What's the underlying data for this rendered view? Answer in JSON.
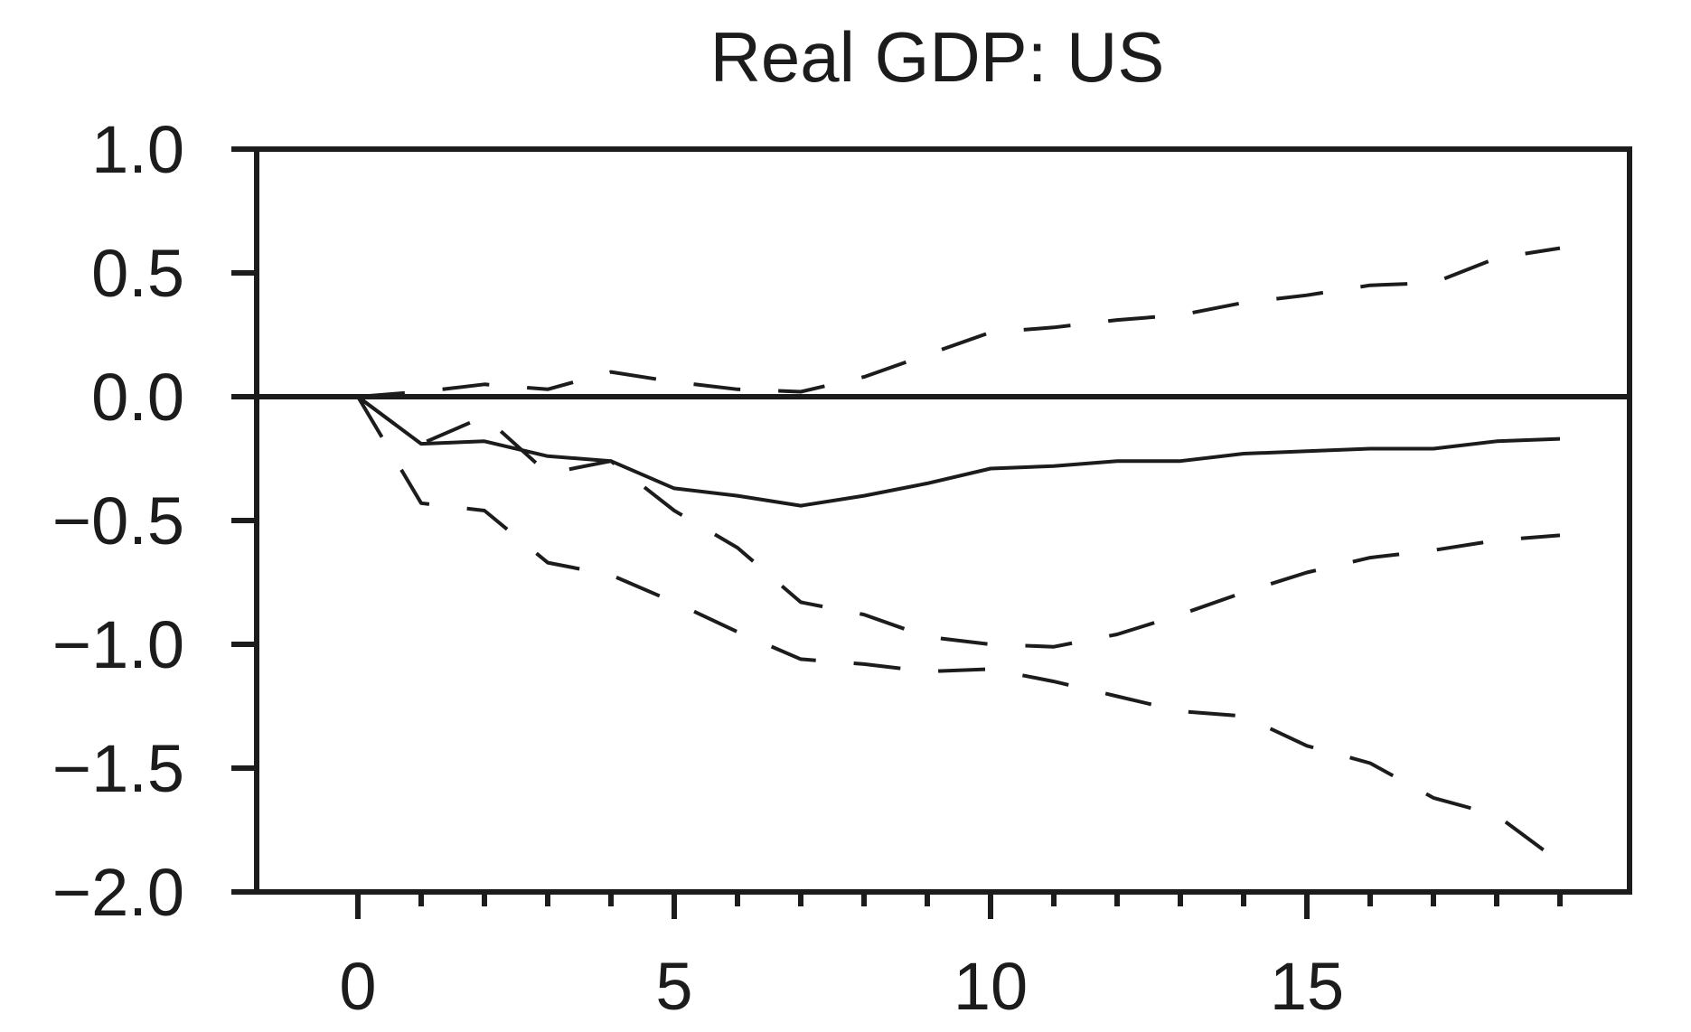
{
  "chart_data": {
    "type": "line",
    "title": "Real GDP: US",
    "xlabel": "",
    "ylabel": "",
    "xlim": [
      -1.6,
      20.1
    ],
    "ylim": [
      -2.0,
      1.0
    ],
    "x_ticks_major": [
      0,
      5,
      10,
      15
    ],
    "x_ticks_minor": [
      1,
      2,
      3,
      4,
      6,
      7,
      8,
      9,
      11,
      12,
      13,
      14,
      16,
      17,
      18,
      19
    ],
    "y_ticks": [
      {
        "value": 1.0,
        "label": "1.0"
      },
      {
        "value": 0.5,
        "label": "0.5"
      },
      {
        "value": 0.0,
        "label": "0.0"
      },
      {
        "value": -0.5,
        "label": "−0.5"
      },
      {
        "value": -1.0,
        "label": "−1.0"
      },
      {
        "value": -1.5,
        "label": "−1.5"
      },
      {
        "value": -2.0,
        "label": "−2.0"
      }
    ],
    "zero_line": true,
    "grid": false,
    "x": [
      0,
      1,
      2,
      3,
      4,
      5,
      6,
      7,
      8,
      9,
      10,
      11,
      12,
      13,
      14,
      15,
      16,
      17,
      18,
      19
    ],
    "series": [
      {
        "style": "solid",
        "values": [
          0.0,
          -0.19,
          -0.18,
          -0.24,
          -0.26,
          -0.37,
          -0.4,
          -0.44,
          -0.4,
          -0.35,
          -0.29,
          -0.28,
          -0.26,
          -0.26,
          -0.23,
          -0.22,
          -0.21,
          -0.21,
          -0.18,
          -0.17
        ]
      },
      {
        "style": "dashed",
        "values": [
          0.0,
          -0.19,
          -0.08,
          -0.31,
          -0.26,
          -0.46,
          -0.61,
          -0.83,
          -0.88,
          -0.97,
          -1.0,
          -1.01,
          -0.96,
          -0.88,
          -0.79,
          -0.71,
          -0.65,
          -0.62,
          -0.58,
          -0.56
        ]
      },
      {
        "style": "dashed",
        "values": [
          0.0,
          0.02,
          0.05,
          0.03,
          0.1,
          0.06,
          0.03,
          0.02,
          0.08,
          0.17,
          0.26,
          0.28,
          0.31,
          0.33,
          0.38,
          0.41,
          0.45,
          0.46,
          0.56,
          0.6
        ]
      },
      {
        "style": "dashed",
        "values": [
          0.0,
          -0.43,
          -0.46,
          -0.67,
          -0.72,
          -0.83,
          -0.95,
          -1.06,
          -1.08,
          -1.11,
          -1.1,
          -1.15,
          -1.21,
          -1.27,
          -1.29,
          -1.41,
          -1.48,
          -1.62,
          -1.69,
          -1.88
        ]
      }
    ]
  }
}
